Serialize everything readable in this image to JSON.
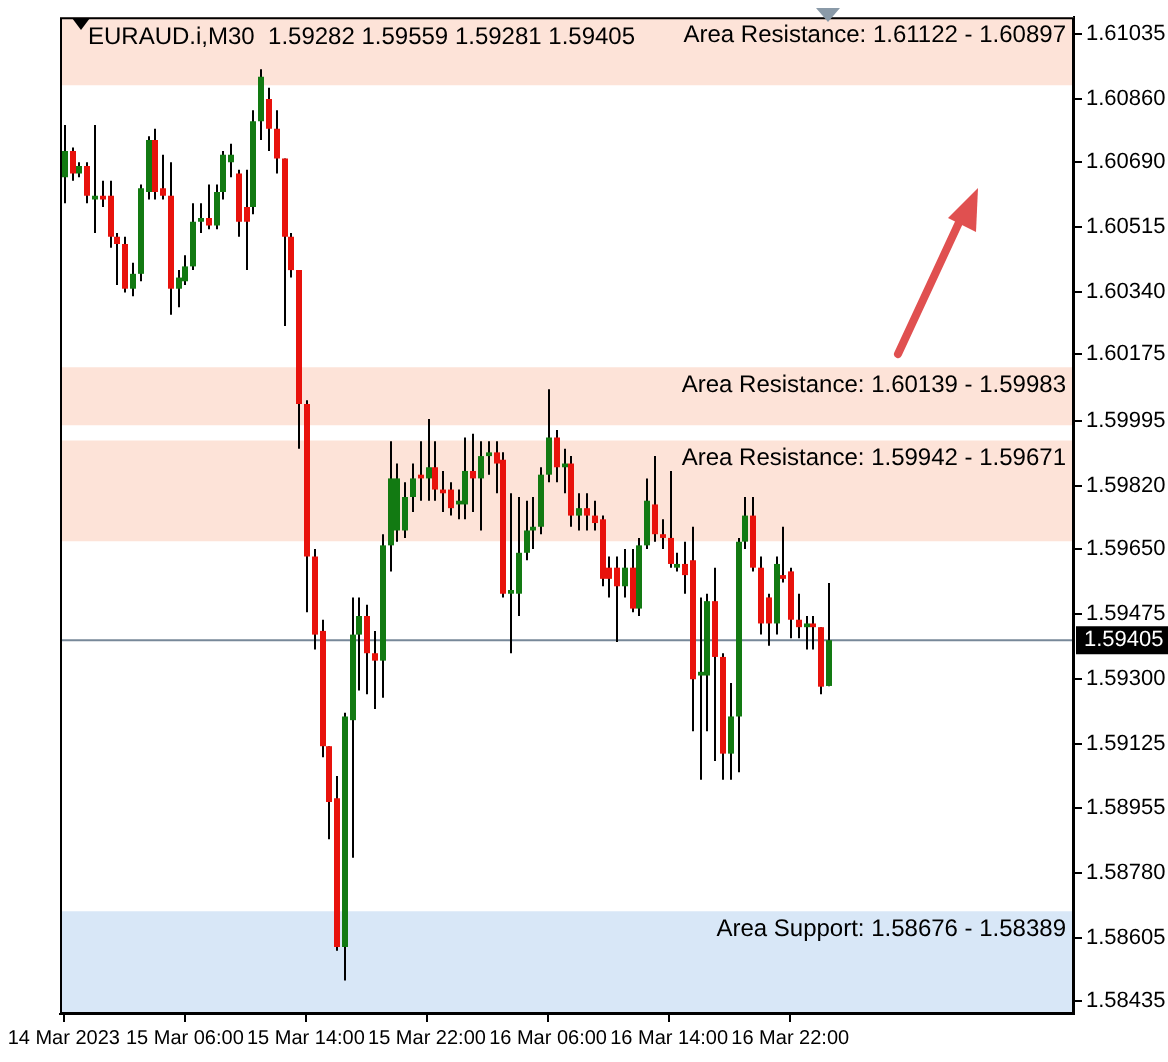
{
  "chart_data": {
    "type": "candlestick",
    "title": "EURAUD.i,M30  1.59282 1.59559 1.59281 1.59405",
    "categories": [
      "14 Mar 2023",
      null,
      null,
      null,
      null,
      null,
      null,
      null,
      null,
      null,
      null,
      null,
      null,
      null,
      null,
      null,
      "15 Mar 06:00",
      null,
      null,
      null,
      null,
      null,
      null,
      null,
      null,
      null,
      null,
      null,
      null,
      null,
      null,
      null,
      "15 Mar 14:00",
      null,
      null,
      null,
      null,
      null,
      null,
      null,
      null,
      null,
      null,
      null,
      null,
      null,
      null,
      null,
      "15 Mar 22:00",
      null,
      null,
      null,
      null,
      null,
      null,
      null,
      null,
      null,
      null,
      null,
      null,
      null,
      null,
      null,
      "16 Mar 06:00",
      null,
      null,
      null,
      null,
      null,
      null,
      null,
      null,
      null,
      null,
      null,
      null,
      null,
      null,
      null,
      "16 Mar 14:00",
      null,
      null,
      null,
      null,
      null,
      null,
      null,
      null,
      null,
      null,
      null,
      null,
      null,
      null,
      null,
      "16 Mar 22:00",
      null,
      null,
      null,
      null,
      null,
      null,
      null,
      null,
      null,
      null,
      null,
      null,
      null,
      null,
      null,
      null,
      null,
      null,
      null,
      null,
      null,
      null,
      null,
      null,
      null,
      null,
      null,
      null,
      null,
      null,
      null,
      null,
      null,
      null,
      null,
      null,
      null
    ],
    "ohlc": [
      [
        1.6065,
        1.6079,
        1.6058,
        1.6072
      ],
      [
        1.6072,
        1.6073,
        1.6064,
        1.6066
      ],
      [
        1.6066,
        1.6069,
        1.6065,
        1.6068
      ],
      [
        1.6068,
        1.6069,
        1.6058,
        1.606
      ],
      [
        1.6059,
        1.6079,
        1.605,
        1.606
      ],
      [
        1.606,
        1.6064,
        1.6057,
        1.6059
      ],
      [
        1.606,
        1.6064,
        1.6046,
        1.6049
      ],
      [
        1.6049,
        1.605,
        1.6036,
        1.6047
      ],
      [
        1.6047,
        1.6049,
        1.6034,
        1.6035
      ],
      [
        1.6035,
        1.6042,
        1.6033,
        1.6039
      ],
      [
        1.6039,
        1.6063,
        1.6037,
        1.6062
      ],
      [
        1.6061,
        1.6076,
        1.6059,
        1.6075
      ],
      [
        1.6075,
        1.6078,
        1.6059,
        1.6061
      ],
      [
        1.6062,
        1.6071,
        1.6059,
        1.606
      ],
      [
        1.606,
        1.6069,
        1.6028,
        1.6035
      ],
      [
        1.6035,
        1.604,
        1.603,
        1.6038
      ],
      [
        1.6037,
        1.6044,
        1.6036,
        1.6041
      ],
      [
        1.6041,
        1.6058,
        1.604,
        1.6053
      ],
      [
        1.6053,
        1.6058,
        1.605,
        1.6054
      ],
      [
        1.6054,
        1.6063,
        1.6051,
        1.6052
      ],
      [
        1.6052,
        1.6063,
        1.6051,
        1.6061
      ],
      [
        1.6061,
        1.6072,
        1.6059,
        1.6071
      ],
      [
        1.6069,
        1.6074,
        1.6065,
        1.6071
      ],
      [
        1.6066,
        1.6067,
        1.6049,
        1.6053
      ],
      [
        1.6057,
        1.6067,
        1.604,
        1.6053
      ],
      [
        1.6057,
        1.6083,
        1.6055,
        1.608
      ],
      [
        1.608,
        1.6094,
        1.6075,
        1.6092
      ],
      [
        1.6086,
        1.6089,
        1.6072,
        1.6078
      ],
      [
        1.6078,
        1.6083,
        1.6066,
        1.607
      ],
      [
        1.607,
        1.607,
        1.6025,
        1.6049
      ],
      [
        1.6049,
        1.605,
        1.6038,
        1.604
      ],
      [
        1.604,
        1.604,
        1.5992,
        1.6004
      ],
      [
        1.6004,
        1.6005,
        1.5948,
        1.5963
      ],
      [
        1.5963,
        1.5965,
        1.5938,
        1.5942
      ],
      [
        1.5943,
        1.5946,
        1.5909,
        1.5912
      ],
      [
        1.5912,
        1.5912,
        1.5887,
        1.5897
      ],
      [
        1.5898,
        1.5904,
        1.5857,
        1.5858
      ],
      [
        1.5858,
        1.5921,
        1.5849,
        1.592
      ],
      [
        1.5919,
        1.5952,
        1.5882,
        1.5942
      ],
      [
        1.5942,
        1.5952,
        1.5927,
        1.5947
      ],
      [
        1.5947,
        1.595,
        1.5926,
        1.5937
      ],
      [
        1.5937,
        1.5943,
        1.5922,
        1.5935
      ],
      [
        1.5935,
        1.5969,
        1.5925,
        1.5966
      ],
      [
        1.5966,
        1.5994,
        1.5959,
        1.5984
      ],
      [
        1.597,
        1.5988,
        1.5967,
        1.5984
      ],
      [
        1.597,
        1.5983,
        1.5968,
        1.5979
      ],
      [
        1.5979,
        1.5988,
        1.5975,
        1.5984
      ],
      [
        1.5985,
        1.5994,
        1.5978,
        1.5984
      ],
      [
        1.5984,
        1.6,
        1.5978,
        1.5987
      ],
      [
        1.5987,
        1.5994,
        1.5978,
        1.5981
      ],
      [
        1.5981,
        1.5986,
        1.5975,
        1.598
      ],
      [
        1.5981,
        1.5983,
        1.5974,
        1.5976
      ],
      [
        1.5977,
        1.5981,
        1.5973,
        1.5978
      ],
      [
        1.5977,
        1.5995,
        1.5973,
        1.5986
      ],
      [
        1.5986,
        1.5996,
        1.5975,
        1.5984
      ],
      [
        1.5984,
        1.5994,
        1.597,
        1.599
      ],
      [
        1.599,
        1.5994,
        1.5985,
        1.5991
      ],
      [
        1.5991,
        1.5994,
        1.598,
        1.5988
      ],
      [
        1.5989,
        1.5991,
        1.5952,
        1.5953
      ],
      [
        1.5953,
        1.598,
        1.5937,
        1.5954
      ],
      [
        1.5953,
        1.5979,
        1.5947,
        1.5964
      ],
      [
        1.5964,
        1.5978,
        1.5962,
        1.597
      ],
      [
        1.597,
        1.5979,
        1.5965,
        1.5971
      ],
      [
        1.5971,
        1.5987,
        1.5969,
        1.5985
      ],
      [
        1.5985,
        1.6008,
        1.5983,
        1.5995
      ],
      [
        1.5995,
        1.5997,
        1.5983,
        1.5987
      ],
      [
        1.5987,
        1.5992,
        1.598,
        1.5988
      ],
      [
        1.5988,
        1.599,
        1.5971,
        1.5974
      ],
      [
        1.5974,
        1.598,
        1.597,
        1.5976
      ],
      [
        1.5976,
        1.598,
        1.597,
        1.5974
      ],
      [
        1.5974,
        1.5978,
        1.597,
        1.5972
      ],
      [
        1.5973,
        1.5974,
        1.5955,
        1.5957
      ],
      [
        1.596,
        1.5963,
        1.5952,
        1.5957
      ],
      [
        1.596,
        1.5963,
        1.594,
        1.5955
      ],
      [
        1.5955,
        1.5965,
        1.5952,
        1.596
      ],
      [
        1.596,
        1.5965,
        1.5948,
        1.5949
      ],
      [
        1.5949,
        1.5968,
        1.5947,
        1.5966
      ],
      [
        1.5966,
        1.5984,
        1.5965,
        1.5978
      ],
      [
        1.5977,
        1.599,
        1.5967,
        1.5969
      ],
      [
        1.5969,
        1.5973,
        1.5965,
        1.5968
      ],
      [
        1.5968,
        1.5986,
        1.596,
        1.5961
      ],
      [
        1.596,
        1.5964,
        1.5959,
        1.5961
      ],
      [
        1.5961,
        1.5967,
        1.5953,
        1.5958
      ],
      [
        1.5962,
        1.5971,
        1.5916,
        1.593
      ],
      [
        1.5931,
        1.5952,
        1.5903,
        1.5932
      ],
      [
        1.5931,
        1.5953,
        1.5916,
        1.5951
      ],
      [
        1.5951,
        1.596,
        1.5908,
        1.5936
      ],
      [
        1.5936,
        1.5937,
        1.5903,
        1.591
      ],
      [
        1.591,
        1.5929,
        1.5903,
        1.592
      ],
      [
        1.592,
        1.5968,
        1.5905,
        1.5967
      ],
      [
        1.5967,
        1.5979,
        1.5965,
        1.5974
      ],
      [
        1.5974,
        1.5979,
        1.5959,
        1.596
      ],
      [
        1.596,
        1.5963,
        1.5942,
        1.5945
      ],
      [
        1.5952,
        1.5953,
        1.5939,
        1.5945
      ],
      [
        1.5945,
        1.5963,
        1.5942,
        1.5961
      ],
      [
        1.5958,
        1.5971,
        1.5956,
        1.5957
      ],
      [
        1.5959,
        1.596,
        1.5941,
        1.5946
      ],
      [
        1.5946,
        1.5953,
        1.5941,
        1.5944
      ],
      [
        1.5944,
        1.5947,
        1.5938,
        1.5945
      ],
      [
        1.5945,
        1.5947,
        1.5938,
        1.5944
      ],
      [
        1.5944,
        1.5944,
        1.5926,
        1.5928
      ],
      [
        1.59282,
        1.59559,
        1.59281,
        1.59405
      ],
      null,
      null,
      null,
      null,
      null,
      null,
      null,
      null,
      null,
      null,
      null,
      null,
      null,
      null,
      null,
      null,
      null,
      null,
      null,
      null,
      null,
      null,
      null,
      null,
      null,
      null,
      null,
      null,
      null,
      null,
      null,
      null
    ],
    "ylim": [
      1.584,
      1.6108
    ],
    "yticks": [
      {
        "value": 1.58435,
        "label": "1.58435"
      },
      {
        "value": 1.58605,
        "label": "1.58605"
      },
      {
        "value": 1.5878,
        "label": "1.58780"
      },
      {
        "value": 1.58955,
        "label": "1.58955"
      },
      {
        "value": 1.59125,
        "label": "1.59125"
      },
      {
        "value": 1.593,
        "label": "1.59300"
      },
      {
        "value": 1.59475,
        "label": "1.59475"
      },
      {
        "value": 1.5965,
        "label": "1.59650"
      },
      {
        "value": 1.5982,
        "label": "1.59820"
      },
      {
        "value": 1.59995,
        "label": "1.59995"
      },
      {
        "value": 1.60175,
        "label": "1.60175"
      },
      {
        "value": 1.6034,
        "label": "1.60340"
      },
      {
        "value": 1.60515,
        "label": "1.60515"
      },
      {
        "value": 1.6069,
        "label": "1.60690"
      },
      {
        "value": 1.6086,
        "label": "1.60860"
      },
      {
        "value": 1.61035,
        "label": "1.61035"
      }
    ],
    "ref_lines": [
      {
        "axis": "y",
        "value": 1.59405,
        "label": "1.59405",
        "color": "#778899"
      }
    ],
    "bands": [
      {
        "axis": "y",
        "from": 1.61122,
        "to": 1.60897,
        "label": "Area Resistance: 1.61122 - 1.60897",
        "color": "#fde3d8"
      },
      {
        "axis": "y",
        "from": 1.60139,
        "to": 1.59983,
        "label": "Area Resistance: 1.60139 - 1.59983",
        "color": "#fde3d8"
      },
      {
        "axis": "y",
        "from": 1.59942,
        "to": 1.59671,
        "label": "Area Resistance: 1.59942 - 1.59671",
        "color": "#fde3d8"
      },
      {
        "axis": "y",
        "from": 1.58676,
        "to": 1.58389,
        "label": "Area Support: 1.58676 - 1.58389",
        "color": "#d8e7f7"
      }
    ]
  }
}
